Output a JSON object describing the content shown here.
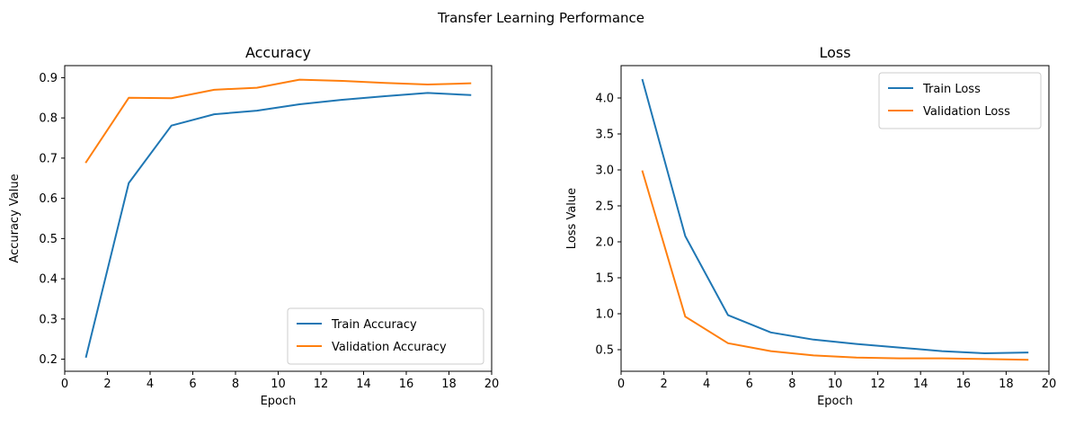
{
  "figure": {
    "suptitle": "Transfer Learning Performance"
  },
  "chart_data": [
    {
      "type": "line",
      "title": "Accuracy",
      "xlabel": "Epoch",
      "ylabel": "Accuracy Value",
      "xlim": [
        0,
        20
      ],
      "ylim": [
        0.17,
        0.93
      ],
      "xticks": [
        0,
        2,
        4,
        6,
        8,
        10,
        12,
        14,
        16,
        18,
        20
      ],
      "yticks": [
        0.2,
        0.3,
        0.4,
        0.5,
        0.6,
        0.7,
        0.8,
        0.9
      ],
      "grid": false,
      "legend": "lower right",
      "x": [
        1,
        3,
        5,
        7,
        9,
        11,
        13,
        15,
        17,
        19
      ],
      "series": [
        {
          "name": "Train Accuracy",
          "color": "#1f77b4",
          "values": [
            0.206,
            0.638,
            0.781,
            0.809,
            0.818,
            0.834,
            0.845,
            0.854,
            0.862,
            0.857
          ]
        },
        {
          "name": "Validation Accuracy",
          "color": "#ff7f0e",
          "values": [
            0.69,
            0.85,
            0.849,
            0.87,
            0.875,
            0.895,
            0.892,
            0.887,
            0.883,
            0.886
          ]
        }
      ]
    },
    {
      "type": "line",
      "title": "Loss",
      "xlabel": "Epoch",
      "ylabel": "Loss Value",
      "xlim": [
        0,
        20
      ],
      "ylim": [
        0.2,
        4.45
      ],
      "xticks": [
        0,
        2,
        4,
        6,
        8,
        10,
        12,
        14,
        16,
        18,
        20
      ],
      "yticks": [
        0.5,
        1.0,
        1.5,
        2.0,
        2.5,
        3.0,
        3.5,
        4.0
      ],
      "grid": false,
      "legend": "upper right",
      "x": [
        1,
        3,
        5,
        7,
        9,
        11,
        13,
        15,
        17,
        19
      ],
      "series": [
        {
          "name": "Train Loss",
          "color": "#1f77b4",
          "values": [
            4.25,
            2.08,
            0.98,
            0.74,
            0.64,
            0.58,
            0.53,
            0.48,
            0.45,
            0.46
          ]
        },
        {
          "name": "Validation Loss",
          "color": "#ff7f0e",
          "values": [
            2.98,
            0.96,
            0.59,
            0.48,
            0.42,
            0.39,
            0.38,
            0.38,
            0.37,
            0.36
          ]
        }
      ]
    }
  ]
}
